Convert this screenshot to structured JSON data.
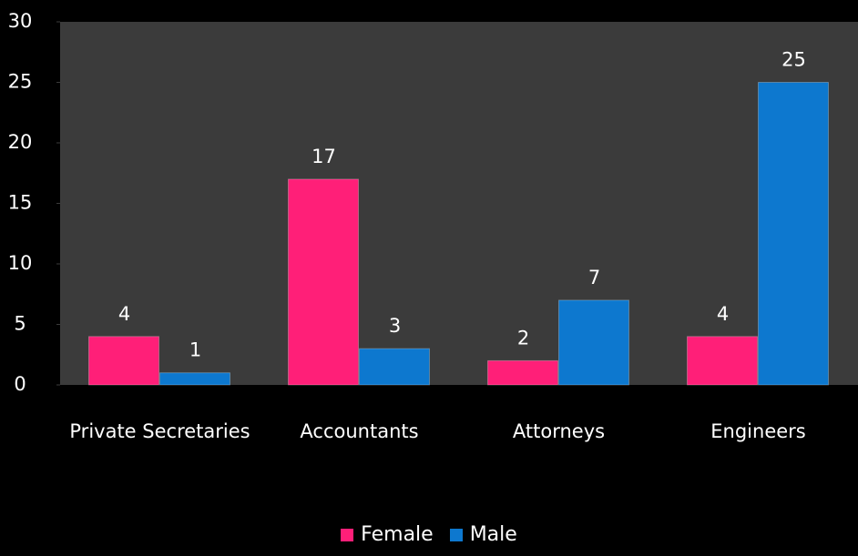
{
  "chart_data": {
    "type": "bar",
    "categories": [
      "Private Secretaries",
      "Accountants",
      "Attorneys",
      "Engineers"
    ],
    "series": [
      {
        "name": "Female",
        "color": "#ff1f78",
        "values": [
          4,
          17,
          2,
          4
        ]
      },
      {
        "name": "Male",
        "color": "#0d78cf",
        "values": [
          1,
          3,
          7,
          25
        ]
      }
    ],
    "ylim": [
      0,
      30
    ],
    "yticks": [
      0,
      5,
      10,
      15,
      20,
      25,
      30
    ],
    "grid": false,
    "plot_background": "#3b3b3b",
    "legend": "bottom"
  }
}
